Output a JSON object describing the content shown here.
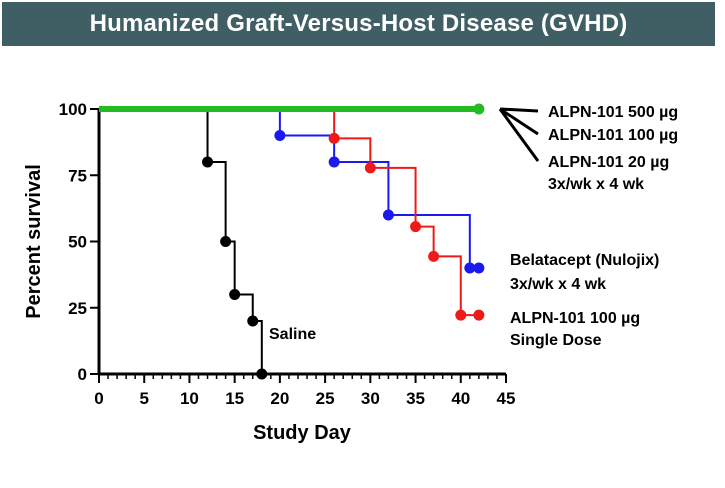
{
  "chart_data": {
    "type": "line",
    "step": true,
    "title": "Humanized Graft-Versus-Host Disease (GVHD)",
    "xlabel": "Study Day",
    "ylabel": "Percent survival",
    "xlim": [
      0,
      45
    ],
    "ylim": [
      0,
      100
    ],
    "xticks": [
      0,
      5,
      10,
      15,
      20,
      25,
      30,
      35,
      40,
      45
    ],
    "yticks": [
      0,
      25,
      50,
      75,
      100
    ],
    "xtick_labels": [
      "0",
      "5",
      "10",
      "15",
      "20",
      "25",
      "30",
      "35",
      "40",
      "45"
    ],
    "ytick_labels": [
      "0",
      "25",
      "50",
      "75",
      "100"
    ],
    "grid": false,
    "series": [
      {
        "name": "Saline",
        "label_lines": [
          "Saline"
        ],
        "color": "#000000",
        "steps": [
          [
            0,
            100
          ],
          [
            12,
            80
          ],
          [
            14,
            50
          ],
          [
            15,
            30
          ],
          [
            17,
            20
          ],
          [
            18,
            0
          ]
        ],
        "markers": [
          [
            12,
            80
          ],
          [
            14,
            50
          ],
          [
            15,
            30
          ],
          [
            17,
            20
          ],
          [
            18,
            0
          ]
        ]
      },
      {
        "name": "Belatacept (Nulojix) 3x/wk x 4 wk",
        "label_lines": [
          "Belatacept (Nulojix)",
          "3x/wk x 4 wk"
        ],
        "color": "#1a1aee",
        "steps": [
          [
            0,
            100
          ],
          [
            20,
            90
          ],
          [
            26,
            80
          ],
          [
            32,
            60
          ],
          [
            41,
            40
          ],
          [
            42,
            40
          ]
        ],
        "markers": [
          [
            20,
            90
          ],
          [
            26,
            80
          ],
          [
            32,
            60
          ],
          [
            41,
            40
          ],
          [
            42,
            40
          ]
        ]
      },
      {
        "name": "ALPN-101 100 µg Single Dose",
        "label_lines": [
          "ALPN-101 100 µg",
          "Single Dose"
        ],
        "color": "#ee1a1a",
        "steps": [
          [
            0,
            100
          ],
          [
            26,
            88.9
          ],
          [
            30,
            77.8
          ],
          [
            35,
            55.6
          ],
          [
            37,
            44.4
          ],
          [
            40,
            22.2
          ],
          [
            42,
            22.2
          ]
        ],
        "markers": [
          [
            26,
            88.9
          ],
          [
            30,
            77.8
          ],
          [
            35,
            55.6
          ],
          [
            37,
            44.4
          ],
          [
            40,
            22.2
          ],
          [
            42,
            22.2
          ]
        ]
      },
      {
        "name": "ALPN-101 500 µg / 100 µg / 20 µg 3x/wk x 4 wk",
        "label_lines": [
          "ALPN-101 500 µg",
          "ALPN-101 100 µg",
          "ALPN-101 20 µg",
          "3x/wk x 4 wk"
        ],
        "color": "#22bb22",
        "steps": [
          [
            0,
            100
          ],
          [
            42,
            100
          ]
        ],
        "markers": [
          [
            42,
            100
          ]
        ]
      }
    ]
  }
}
